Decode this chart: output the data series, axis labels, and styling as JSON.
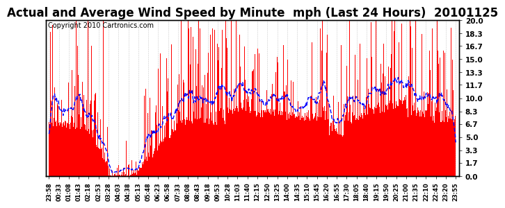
{
  "title": "Actual and Average Wind Speed by Minute  mph (Last 24 Hours)  20101125",
  "copyright": "Copyright 2010 Cartronics.com",
  "ylabel_right": [
    "20.0",
    "18.3",
    "16.7",
    "15.0",
    "13.3",
    "11.7",
    "10.0",
    "8.3",
    "6.7",
    "5.0",
    "3.3",
    "1.7",
    "0.0"
  ],
  "yticks": [
    20.0,
    18.3,
    16.7,
    15.0,
    13.3,
    11.7,
    10.0,
    8.3,
    6.7,
    5.0,
    3.3,
    1.7,
    0.0
  ],
  "ylim": [
    0.0,
    20.0
  ],
  "background_color": "#ffffff",
  "bar_color": "#ff0000",
  "avg_color": "#0000ff",
  "title_fontsize": 12,
  "copyright_fontsize": 7,
  "xtick_labels": [
    "23:58",
    "00:33",
    "01:08",
    "01:43",
    "02:18",
    "02:53",
    "03:28",
    "04:03",
    "04:38",
    "05:13",
    "05:48",
    "06:23",
    "06:58",
    "07:33",
    "08:08",
    "08:43",
    "09:18",
    "09:53",
    "10:28",
    "11:03",
    "11:40",
    "12:15",
    "12:50",
    "13:25",
    "14:00",
    "14:35",
    "15:10",
    "15:45",
    "16:20",
    "16:55",
    "17:30",
    "18:05",
    "18:40",
    "19:15",
    "19:50",
    "20:25",
    "21:00",
    "21:35",
    "22:10",
    "22:45",
    "23:20",
    "23:55"
  ]
}
